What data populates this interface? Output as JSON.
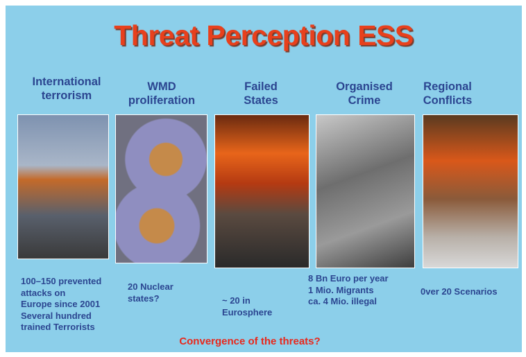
{
  "title": "Threat Perception ESS",
  "columns": [
    {
      "heading": [
        "International",
        "terrorism"
      ],
      "description": [
        "100–150 prevented",
        "attacks on",
        "Europe since 2001",
        "Several hundred",
        "trained Terrorists"
      ]
    },
    {
      "heading": [
        "WMD",
        "proliferation"
      ],
      "description": [
        "20 Nuclear",
        "states?"
      ]
    },
    {
      "heading": [
        "Failed",
        "States"
      ],
      "description": [
        "~ 20 in",
        "Eurosphere"
      ]
    },
    {
      "heading": [
        "Organised",
        "Crime"
      ],
      "description": [
        "8 Bn Euro per year",
        "1 Mio. Migrants",
        "ca. 4 Mio. illegal"
      ]
    },
    {
      "heading": [
        "Regional",
        "Conflicts"
      ],
      "description": [
        "0ver 20 Scenarios"
      ]
    }
  ],
  "footer": "Convergence of the threats?"
}
